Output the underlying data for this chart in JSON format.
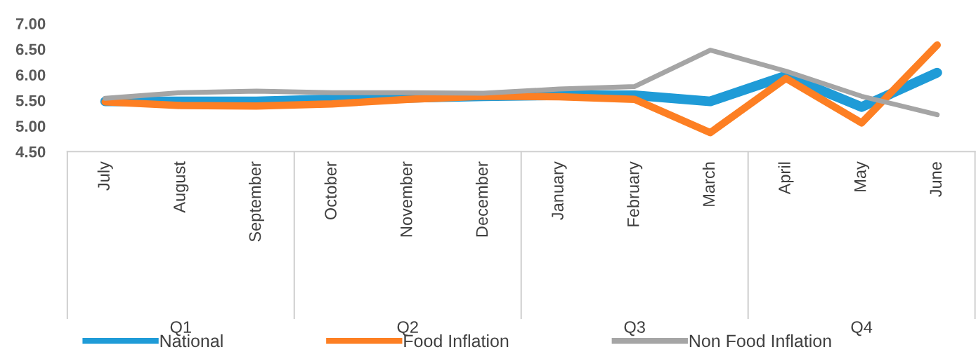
{
  "chart_data": {
    "type": "line",
    "categories": [
      "July",
      "August",
      "September",
      "October",
      "November",
      "December",
      "January",
      "February",
      "March",
      "April",
      "May",
      "June"
    ],
    "series": [
      {
        "name": "National",
        "color": "#1f9bd7",
        "values": [
          5.48,
          5.48,
          5.48,
          5.52,
          5.55,
          5.58,
          5.6,
          5.6,
          5.48,
          5.98,
          5.37,
          6.04
        ]
      },
      {
        "name": "Food Inflation",
        "color": "#fd7f23",
        "values": [
          5.47,
          5.4,
          5.39,
          5.43,
          5.52,
          5.58,
          5.57,
          5.52,
          4.87,
          5.93,
          5.06,
          6.58
        ]
      },
      {
        "name": "Non Food Inflation",
        "color": "#a5a5a5",
        "values": [
          5.54,
          5.65,
          5.68,
          5.65,
          5.65,
          5.64,
          5.72,
          5.77,
          6.48,
          6.07,
          5.58,
          5.22
        ]
      }
    ],
    "annotations": [
      "Q1",
      "Q2",
      "Q3",
      "Q4"
    ],
    "ylim": [
      4.5,
      7.0
    ],
    "yticks": [
      {
        "value": 4.5,
        "label": "4.50"
      },
      {
        "value": 5.0,
        "label": "5.00"
      },
      {
        "value": 5.5,
        "label": "5.50"
      },
      {
        "value": 6.0,
        "label": "6.00"
      },
      {
        "value": 6.5,
        "label": "6.50"
      },
      {
        "value": 7.0,
        "label": "7.00"
      }
    ],
    "grid": false,
    "legend": "bottom",
    "marker": "none",
    "line_style": "solid"
  }
}
